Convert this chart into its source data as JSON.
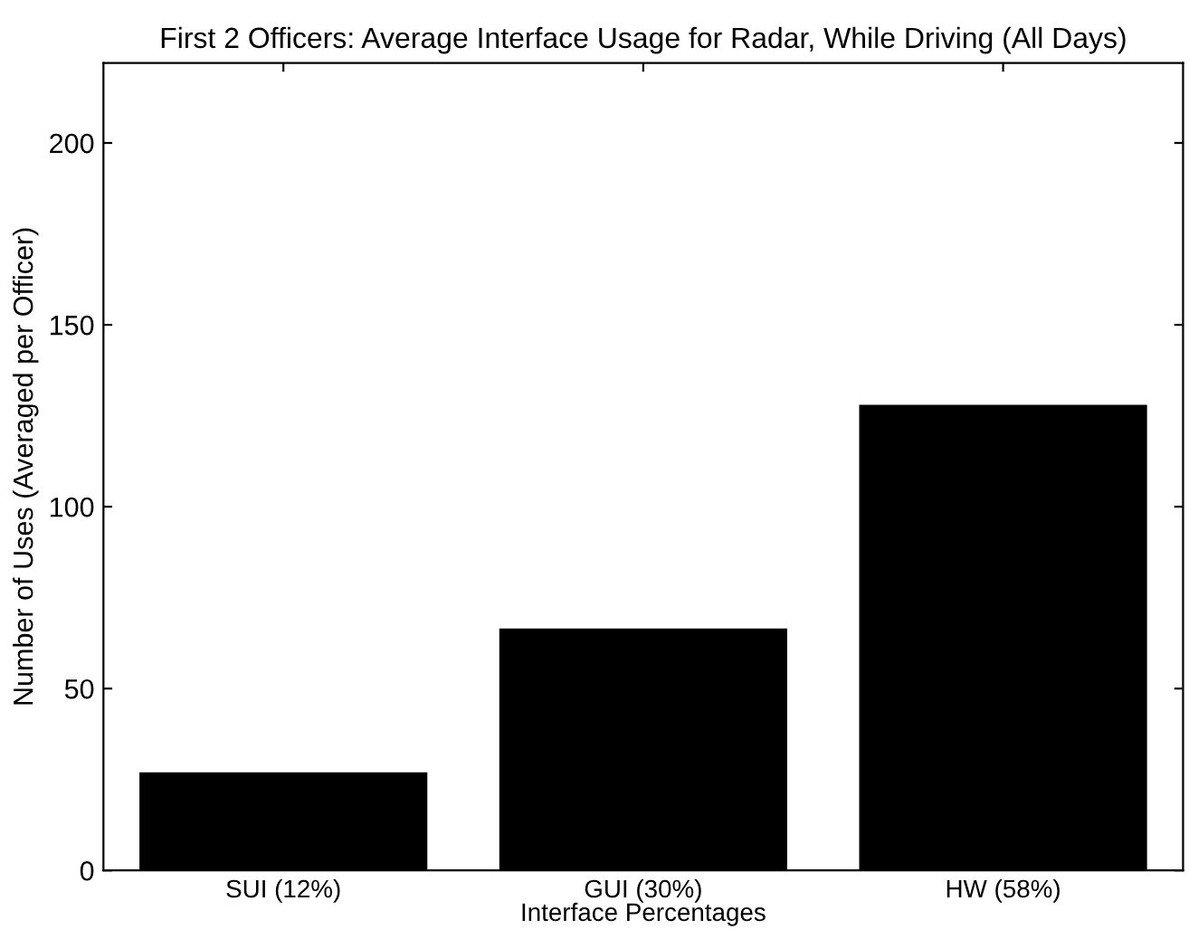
{
  "chart_data": {
    "type": "bar",
    "title": "First 2 Officers: Average Interface Usage for Radar, While Driving (All Days)",
    "xlabel": "Interface Percentages",
    "ylabel": "Number of Uses (Averaged per Officer)",
    "categories": [
      "SUI (12%)",
      "GUI (30%)",
      "HW (58%)"
    ],
    "values": [
      27,
      66.5,
      128
    ],
    "color": "#000000",
    "ylim": [
      0,
      222
    ],
    "yticks": [
      0,
      50,
      100,
      150,
      200
    ],
    "grid": false,
    "legend": false
  }
}
